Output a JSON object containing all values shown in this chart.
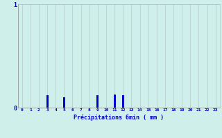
{
  "xlabel": "Précipitations 6min ( mm )",
  "hours": [
    0,
    1,
    2,
    3,
    4,
    5,
    6,
    7,
    8,
    9,
    10,
    11,
    12,
    13,
    14,
    15,
    16,
    17,
    18,
    19,
    20,
    21,
    22,
    23
  ],
  "values": [
    0,
    0,
    0,
    0.12,
    0,
    0.1,
    0,
    0,
    0,
    0.12,
    0,
    0.13,
    0.12,
    0,
    0,
    0,
    0,
    0,
    0,
    0,
    0,
    0,
    0,
    0
  ],
  "bar_color": "#0000cc",
  "bg_color": "#cff0ea",
  "grid_color": "#b0c8c8",
  "text_color": "#0000cc",
  "ylim": [
    0,
    1.0
  ],
  "yticks": [
    0,
    1
  ],
  "xlim": [
    -0.5,
    23.5
  ]
}
